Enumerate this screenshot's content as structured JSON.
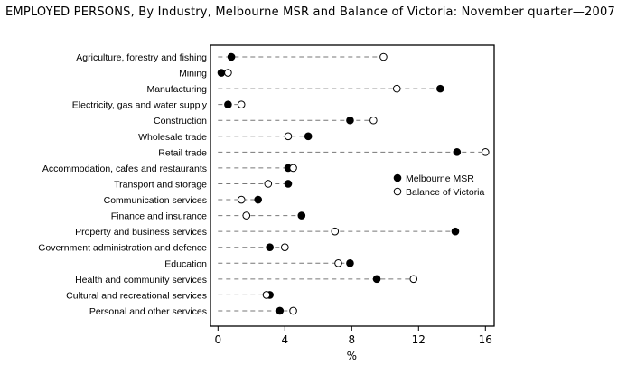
{
  "chart_data": {
    "type": "scatter",
    "title": "EMPLOYED PERSONS, By Industry, Melbourne MSR and Balance of Victoria: November quarter—2007",
    "xlabel": "%",
    "ylabel": "",
    "xlim": [
      0,
      16.5
    ],
    "xticks": [
      0,
      4,
      8,
      12,
      16
    ],
    "grid": false,
    "legend_position": "right-middle",
    "categories": [
      "Agriculture, forestry and fishing",
      "Mining",
      "Manufacturing",
      "Electricity, gas and water supply",
      "Construction",
      "Wholesale trade",
      "Retail trade",
      "Accommodation, cafes and restaurants",
      "Transport and storage",
      "Communication services",
      "Finance and insurance",
      "Property and business services",
      "Government administration and defence",
      "Education",
      "Health and community services",
      "Cultural and recreational services",
      "Personal and other services"
    ],
    "series": [
      {
        "name": "Melbourne MSR",
        "marker": "filled-circle",
        "color": "#000000",
        "values": [
          0.8,
          0.2,
          13.3,
          0.6,
          7.9,
          5.4,
          14.3,
          4.2,
          4.2,
          2.4,
          5.0,
          14.2,
          3.1,
          7.9,
          9.5,
          3.1,
          3.7
        ]
      },
      {
        "name": "Balance of Victoria",
        "marker": "open-circle",
        "color": "#000000",
        "values": [
          9.9,
          0.6,
          10.7,
          1.4,
          9.3,
          4.2,
          16.0,
          4.5,
          3.0,
          1.4,
          1.7,
          7.0,
          4.0,
          7.2,
          11.7,
          2.9,
          4.5
        ]
      }
    ]
  }
}
